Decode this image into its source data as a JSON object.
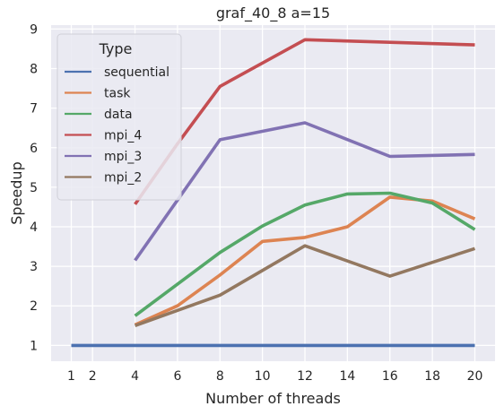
{
  "chart_data": {
    "type": "line",
    "title": "graf_40_8 a=15",
    "xlabel": "Number of threads",
    "ylabel": "Speedup",
    "xlim": [
      0.05,
      20.95
    ],
    "ylim": [
      0.6,
      9.1
    ],
    "xticks": [
      1,
      2,
      4,
      6,
      8,
      10,
      12,
      14,
      16,
      18,
      20
    ],
    "yticks": [
      1,
      2,
      3,
      4,
      5,
      6,
      7,
      8,
      9
    ],
    "grid": true,
    "legend": {
      "title": "Type",
      "placement": "top-left"
    },
    "series": [
      {
        "name": "sequential",
        "color": "#4c72b0",
        "x": [
          1,
          2,
          4,
          8,
          12,
          16,
          20
        ],
        "y": [
          1,
          1,
          1,
          1,
          1,
          1,
          1
        ]
      },
      {
        "name": "task",
        "color": "#dd8452",
        "x": [
          4,
          6,
          8,
          10,
          12,
          14,
          16,
          18,
          20
        ],
        "y": [
          1.52,
          2.0,
          2.78,
          3.63,
          3.73,
          4.0,
          4.75,
          4.65,
          4.2
        ]
      },
      {
        "name": "data",
        "color": "#55a868",
        "x": [
          4,
          8,
          10,
          12,
          14,
          16,
          18,
          20
        ],
        "y": [
          1.75,
          3.35,
          4.02,
          4.55,
          4.83,
          4.85,
          4.6,
          3.93
        ]
      },
      {
        "name": "mpi_4",
        "color": "#c44e52",
        "x": [
          4,
          6,
          8,
          12,
          20
        ],
        "y": [
          4.57,
          6.1,
          7.55,
          8.73,
          8.6
        ]
      },
      {
        "name": "mpi_3",
        "color": "#8172b3",
        "x": [
          4,
          8,
          12,
          16,
          20
        ],
        "y": [
          3.15,
          6.2,
          6.63,
          5.78,
          5.83
        ]
      },
      {
        "name": "mpi_2",
        "color": "#937860",
        "x": [
          4,
          8,
          12,
          16,
          20
        ],
        "y": [
          1.5,
          2.27,
          3.52,
          2.75,
          3.45
        ]
      }
    ]
  },
  "style": {
    "plot_bg": "#eaeaf2",
    "grid_color": "#ffffff",
    "text_color": "#262626"
  }
}
